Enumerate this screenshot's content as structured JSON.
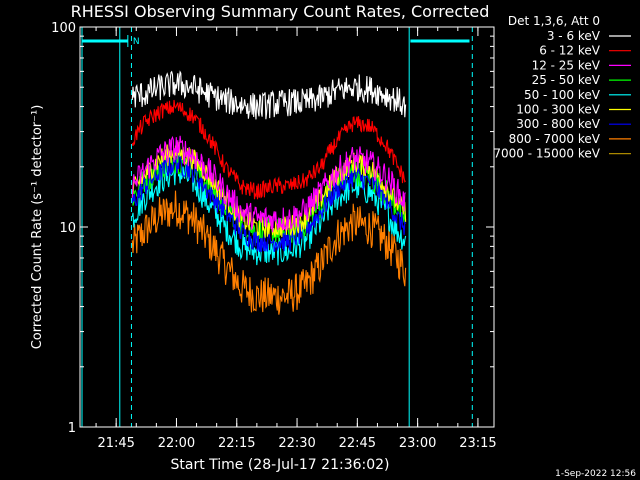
{
  "chart_data": {
    "type": "line",
    "title": "RHESSI Observing Summary Count Rates, Corrected",
    "xlabel": "Start Time (28-Jul-17 21:36:02)",
    "ylabel": "Corrected Count Rate (s⁻¹ detector⁻¹)",
    "ylog": true,
    "ylim": [
      1,
      100
    ],
    "xlim_min": [
      1296,
      1399
    ],
    "x_ticks": [
      {
        "t": 1305,
        "label": "21:45"
      },
      {
        "t": 1320,
        "label": "22:00"
      },
      {
        "t": 1335,
        "label": "22:15"
      },
      {
        "t": 1350,
        "label": "22:30"
      },
      {
        "t": 1365,
        "label": "22:45"
      },
      {
        "t": 1380,
        "label": "23:00"
      },
      {
        "t": 1395,
        "label": "23:15"
      }
    ],
    "y_ticks": [
      {
        "v": 1,
        "label": "1"
      },
      {
        "v": 10,
        "label": "10"
      },
      {
        "v": 100,
        "label": "100"
      }
    ],
    "legend": {
      "header": "Det 1,3,6, Att 0",
      "placement": "outside-right"
    },
    "time_points_min": [
      1309,
      1312,
      1316,
      1320,
      1324,
      1328,
      1332,
      1336,
      1340,
      1344,
      1348,
      1352,
      1356,
      1360,
      1364,
      1368,
      1372,
      1375,
      1377
    ],
    "series": [
      {
        "name": "3 - 6 keV",
        "color": "#ffffff",
        "noise": 0.1,
        "values": [
          45,
          46,
          50,
          52,
          50,
          46,
          43,
          41,
          40,
          41,
          42,
          42,
          44,
          48,
          50,
          49,
          46,
          43,
          40
        ]
      },
      {
        "name": "6 - 12 keV",
        "color": "#ff0000",
        "noise": 0.06,
        "values": [
          27,
          33,
          38,
          40,
          36,
          28,
          20,
          16,
          15,
          16,
          16,
          17,
          20,
          27,
          33,
          32,
          26,
          20,
          17
        ]
      },
      {
        "name": "12 - 25 keV",
        "color": "#ff00ff",
        "noise": 0.1,
        "values": [
          16,
          19,
          23,
          25,
          23,
          19,
          15,
          12,
          11,
          11,
          11,
          12,
          15,
          19,
          22,
          21,
          18,
          15,
          13
        ]
      },
      {
        "name": "25 - 50 keV",
        "color": "#00ff00",
        "noise": 0.1,
        "values": [
          14,
          17,
          20,
          22,
          20,
          16,
          13,
          10.5,
          9.5,
          9.5,
          9.5,
          10.5,
          13,
          17,
          19,
          18,
          15,
          12.5,
          11
        ]
      },
      {
        "name": "50 - 100 keV",
        "color": "#00ffff",
        "noise": 0.1,
        "values": [
          11,
          14,
          17,
          19,
          17,
          13,
          10,
          8,
          7.5,
          7.5,
          7.5,
          8.5,
          10.5,
          14,
          16,
          15,
          12,
          9.5,
          8.5
        ]
      },
      {
        "name": "100 - 300 keV",
        "color": "#ffff00",
        "noise": 0.08,
        "values": [
          15,
          18,
          22,
          24,
          22,
          18,
          14,
          11,
          10,
          10,
          10,
          11,
          14,
          18,
          21,
          20,
          16,
          13,
          12
        ]
      },
      {
        "name": "300 - 800 keV",
        "color": "#0000ff",
        "noise": 0.08,
        "values": [
          13,
          16,
          19,
          21,
          19,
          15,
          12,
          9.5,
          8.5,
          8.5,
          8.5,
          9.5,
          12,
          15.5,
          18,
          17,
          14,
          11,
          10
        ]
      },
      {
        "name": "800 - 7000 keV",
        "color": "#ff7f00",
        "noise": 0.14,
        "values": [
          8,
          9.5,
          11.5,
          12.5,
          11,
          8.5,
          6.5,
          5,
          4.5,
          4.5,
          4.5,
          5,
          6.5,
          9,
          10.5,
          10,
          8.5,
          7,
          6
        ]
      },
      {
        "name": "7000 - 15000 keV",
        "color": "#aa8800",
        "noise": 0.0,
        "values": []
      }
    ],
    "markers": {
      "cyan": "#00ffff",
      "solid_min": [
        1296.5,
        1305.9,
        1377.9
      ],
      "dashed_min": [
        1308.8,
        1393.6
      ],
      "bars": [
        [
          1296.5,
          1307.9
        ],
        [
          1378.2,
          1392.9
        ]
      ],
      "bar_tick_min": 1307.9,
      "label_n": "N"
    }
  },
  "footer": {
    "timestamp": "1-Sep-2022 12:56"
  }
}
